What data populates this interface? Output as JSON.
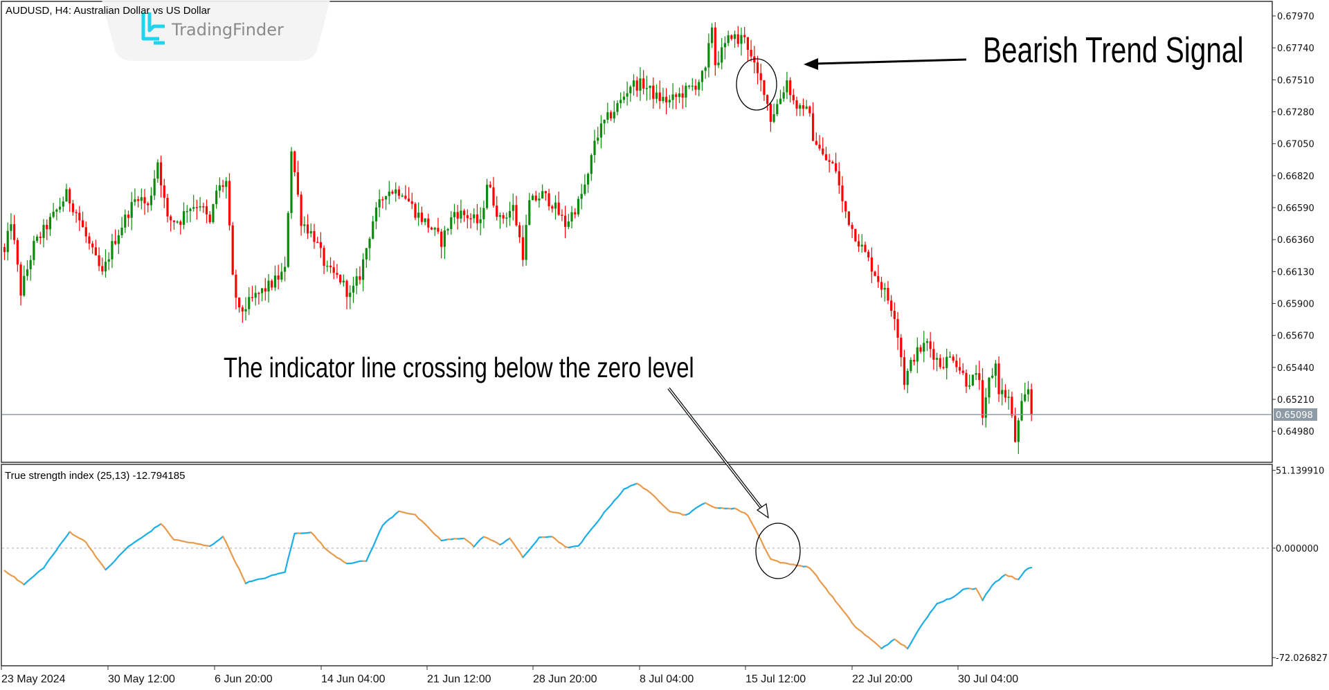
{
  "window": {
    "symbol_title": "AUDUSD, H4:  Australian Dollar vs US Dollar",
    "watermark_brand": "TradingFinder"
  },
  "annotations": {
    "bearish_signal": "Bearish Trend Signal",
    "zero_cross": "The indicator line crossing below the zero level"
  },
  "colors": {
    "bull_candle": "#0b8a0b",
    "bear_candle": "#ff0000",
    "tsi_rising": "#1aaee8",
    "tsi_falling": "#e89a4c",
    "current_price_line": "#8d9ba6",
    "brand_accent": "#22d3ee"
  },
  "price_axis": {
    "ticks": [
      "0.67970",
      "0.67740",
      "0.67510",
      "0.67280",
      "0.67050",
      "0.66820",
      "0.66590",
      "0.66360",
      "0.66130",
      "0.65900",
      "0.65670",
      "0.65440",
      "0.65210",
      "0.64980"
    ],
    "current_price": "0.65098"
  },
  "indicator": {
    "label": "True strength index (25,13) -12.794185",
    "axis_ticks": [
      "51.139910",
      "0.000000",
      "-72.026827"
    ]
  },
  "time_axis": {
    "labels": [
      "23 May 2024",
      "30 May 12:00",
      "6 Jun 20:00",
      "14 Jun 04:00",
      "21 Jun 12:00",
      "28 Jun 20:00",
      "8 Jul 04:00",
      "15 Jul 12:00",
      "22 Jul 20:00",
      "30 Jul 04:00"
    ]
  },
  "chart_data": [
    {
      "type": "candlestick",
      "title": "AUDUSD, H4",
      "bar_count": 316,
      "ylim": [
        0.649,
        0.68
      ],
      "close_path": [
        [
          0,
          0.66256
        ],
        [
          2,
          0.665
        ],
        [
          5,
          0.65981
        ],
        [
          9,
          0.66317
        ],
        [
          15,
          0.6653
        ],
        [
          19,
          0.66683
        ],
        [
          22,
          0.66561
        ],
        [
          26,
          0.66317
        ],
        [
          30,
          0.66103
        ],
        [
          33,
          0.66317
        ],
        [
          38,
          0.66561
        ],
        [
          41,
          0.66683
        ],
        [
          44,
          0.66591
        ],
        [
          47,
          0.66927
        ],
        [
          50,
          0.665
        ],
        [
          54,
          0.665
        ],
        [
          56,
          0.66591
        ],
        [
          60,
          0.66622
        ],
        [
          63,
          0.66469
        ],
        [
          65,
          0.66713
        ],
        [
          68,
          0.66774
        ],
        [
          70,
          0.66073
        ],
        [
          72,
          0.65829
        ],
        [
          77,
          0.65951
        ],
        [
          82,
          0.66042
        ],
        [
          86,
          0.66134
        ],
        [
          88,
          0.67018
        ],
        [
          91,
          0.665
        ],
        [
          95,
          0.66378
        ],
        [
          99,
          0.66134
        ],
        [
          103,
          0.66073
        ],
        [
          106,
          0.65951
        ],
        [
          109,
          0.66103
        ],
        [
          113,
          0.665
        ],
        [
          117,
          0.66713
        ],
        [
          122,
          0.66713
        ],
        [
          126,
          0.66561
        ],
        [
          131,
          0.66439
        ],
        [
          134,
          0.66347
        ],
        [
          138,
          0.66561
        ],
        [
          142,
          0.6653
        ],
        [
          146,
          0.66469
        ],
        [
          148,
          0.66774
        ],
        [
          152,
          0.665
        ],
        [
          156,
          0.66591
        ],
        [
          159,
          0.66256
        ],
        [
          161,
          0.66622
        ],
        [
          165,
          0.66683
        ],
        [
          168,
          0.66622
        ],
        [
          172,
          0.66469
        ],
        [
          176,
          0.66622
        ],
        [
          179,
          0.66805
        ],
        [
          181,
          0.67079
        ],
        [
          184,
          0.67201
        ],
        [
          189,
          0.67354
        ],
        [
          192,
          0.67476
        ],
        [
          196,
          0.67476
        ],
        [
          200,
          0.67384
        ],
        [
          204,
          0.67354
        ],
        [
          208,
          0.67415
        ],
        [
          212,
          0.67476
        ],
        [
          215,
          0.67567
        ],
        [
          217,
          0.67903
        ],
        [
          218,
          0.67628
        ],
        [
          221,
          0.6775
        ],
        [
          223,
          0.67842
        ],
        [
          225,
          0.67781
        ],
        [
          227,
          0.67842
        ],
        [
          229,
          0.67659
        ],
        [
          231,
          0.67537
        ],
        [
          233,
          0.67445
        ],
        [
          235,
          0.67232
        ],
        [
          238,
          0.67384
        ],
        [
          240,
          0.67506
        ],
        [
          242,
          0.67354
        ],
        [
          245,
          0.67262
        ],
        [
          246,
          0.67354
        ],
        [
          248,
          0.6711
        ],
        [
          251,
          0.66957
        ],
        [
          255,
          0.66866
        ],
        [
          257,
          0.66622
        ],
        [
          260,
          0.66439
        ],
        [
          264,
          0.66256
        ],
        [
          268,
          0.66073
        ],
        [
          270,
          0.65981
        ],
        [
          273,
          0.65829
        ],
        [
          275,
          0.65523
        ],
        [
          276,
          0.6534
        ],
        [
          279,
          0.65523
        ],
        [
          283,
          0.65615
        ],
        [
          287,
          0.65462
        ],
        [
          291,
          0.65523
        ],
        [
          295,
          0.6534
        ],
        [
          299,
          0.65371
        ],
        [
          300,
          0.65035
        ],
        [
          302,
          0.6534
        ],
        [
          304,
          0.65462
        ],
        [
          305,
          0.65279
        ],
        [
          308,
          0.65218
        ],
        [
          310,
          0.64913
        ],
        [
          312,
          0.65157
        ],
        [
          314,
          0.65279
        ],
        [
          315,
          0.65098
        ]
      ]
    },
    {
      "type": "line",
      "title": "True strength index (25,13)",
      "ylim": [
        -72.026827,
        51.13991
      ],
      "zero_level": 0,
      "values": [
        [
          0,
          -14.5
        ],
        [
          6,
          -24.0
        ],
        [
          12,
          -12.8
        ],
        [
          20,
          10.6
        ],
        [
          25,
          3.9
        ],
        [
          31,
          -14.5
        ],
        [
          38,
          1.1
        ],
        [
          42,
          6.7
        ],
        [
          48,
          16.2
        ],
        [
          52,
          5.6
        ],
        [
          59,
          2.8
        ],
        [
          63,
          1.1
        ],
        [
          67,
          7.8
        ],
        [
          74,
          -22.9
        ],
        [
          79,
          -20.1
        ],
        [
          86,
          -15.6
        ],
        [
          89,
          9.5
        ],
        [
          94,
          10.6
        ],
        [
          99,
          -1.7
        ],
        [
          105,
          -10.0
        ],
        [
          111,
          -8.4
        ],
        [
          116,
          15.1
        ],
        [
          121,
          24.5
        ],
        [
          126,
          21.7
        ],
        [
          134,
          5.0
        ],
        [
          141,
          6.7
        ],
        [
          144,
          1.1
        ],
        [
          147,
          7.8
        ],
        [
          152,
          2.2
        ],
        [
          155,
          6.7
        ],
        [
          159,
          -6.1
        ],
        [
          164,
          6.7
        ],
        [
          168,
          7.8
        ],
        [
          172,
          0.6
        ],
        [
          176,
          1.1
        ],
        [
          179,
          9.5
        ],
        [
          185,
          26.2
        ],
        [
          190,
          38.5
        ],
        [
          194,
          42.9
        ],
        [
          199,
          34.6
        ],
        [
          204,
          24.5
        ],
        [
          209,
          21.7
        ],
        [
          215,
          30.1
        ],
        [
          218,
          26.2
        ],
        [
          224,
          26.2
        ],
        [
          228,
          21.7
        ],
        [
          231,
          9.5
        ],
        [
          235,
          -7.2
        ],
        [
          239,
          -10.0
        ],
        [
          243,
          -11.1
        ],
        [
          247,
          -12.8
        ],
        [
          253,
          -29.5
        ],
        [
          261,
          -51.8
        ],
        [
          269,
          -65.8
        ],
        [
          273,
          -60.2
        ],
        [
          277,
          -65.8
        ],
        [
          281,
          -51.8
        ],
        [
          286,
          -36.2
        ],
        [
          291,
          -32.3
        ],
        [
          294,
          -26.8
        ],
        [
          298,
          -26.8
        ],
        [
          300,
          -34.0
        ],
        [
          303,
          -24.0
        ],
        [
          307,
          -17.3
        ],
        [
          311,
          -20.6
        ],
        [
          313,
          -14.5
        ],
        [
          315,
          -12.794185
        ]
      ]
    }
  ]
}
